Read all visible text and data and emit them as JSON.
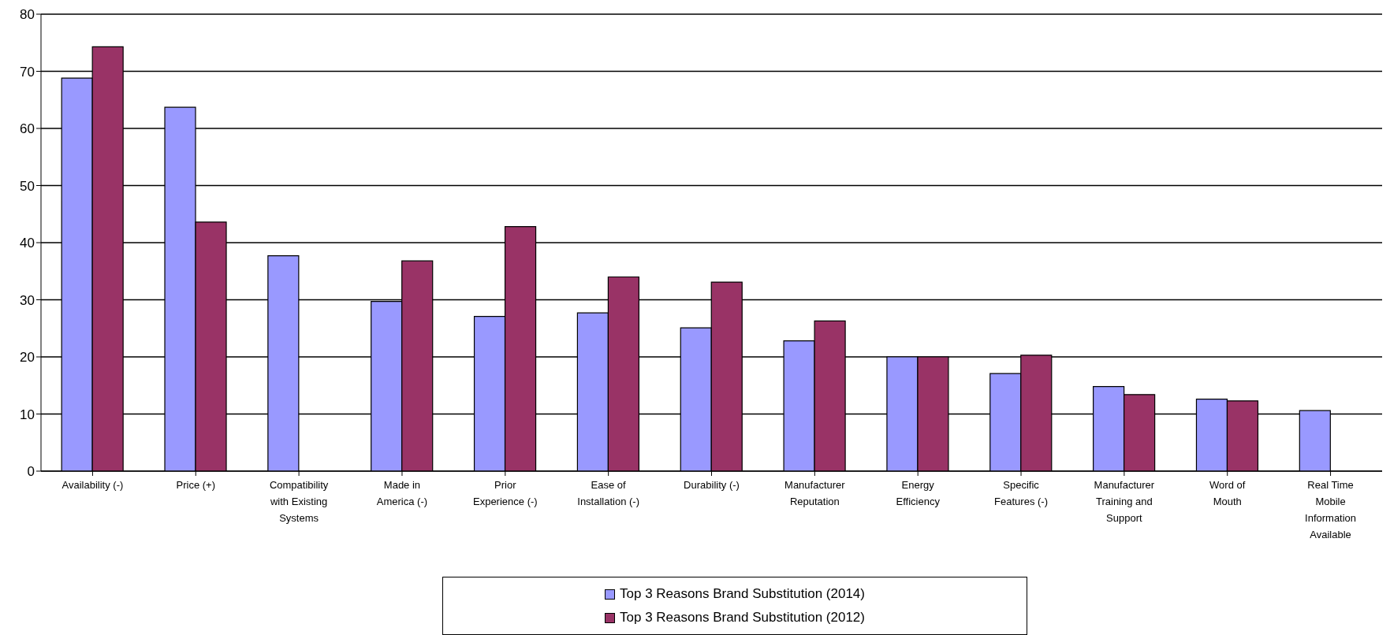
{
  "chart_data": {
    "type": "bar",
    "categories": [
      "Availability (-)",
      "Price (+)",
      "Compatibility\nwith Existing\nSystems",
      "Made in\nAmerica (-)",
      "Prior\nExperience (-)",
      "Ease of\nInstallation (-)",
      "Durability (-)",
      "Manufacturer\nReputation",
      "Energy\nEfficiency",
      "Specific\nFeatures (-)",
      "Manufacturer\nTraining and\nSupport",
      "Word of\nMouth",
      "Real Time\nMobile\nInformation\nAvailable"
    ],
    "series": [
      {
        "name": "Top 3 Reasons Brand Substitution (2014)",
        "color": "#9999ff",
        "values": [
          68.8,
          63.7,
          37.7,
          29.7,
          27.1,
          27.7,
          25.1,
          22.8,
          20,
          17.1,
          14.8,
          12.6,
          10.6
        ]
      },
      {
        "name": "Top 3 Reasons Brand Substitution (2012)",
        "color": "#993366",
        "values": [
          74.3,
          43.6,
          null,
          36.8,
          42.8,
          34,
          33.1,
          26.3,
          20,
          20.3,
          13.4,
          12.3,
          null
        ]
      }
    ],
    "ylim": [
      0,
      80
    ],
    "yticks": [
      0,
      10,
      20,
      30,
      40,
      50,
      60,
      70,
      80
    ],
    "grid": "y",
    "legend": "bottom"
  }
}
